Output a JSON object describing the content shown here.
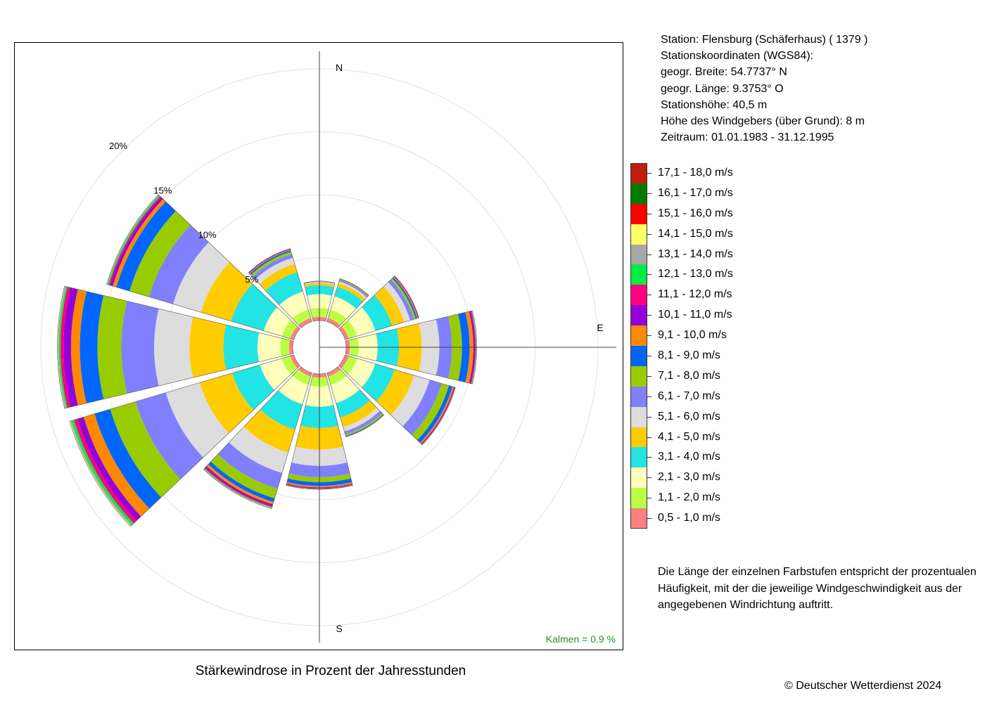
{
  "station": {
    "lines": [
      "Station:  Flensburg (Schäferhaus)  ( 1379 )",
      "Stationskoordinaten (WGS84):",
      "geogr. Breite: 54.7737° N",
      "geogr. Länge:   9.3753° O",
      "Stationshöhe: 40,5 m",
      "Höhe des Windgebers (über Grund): 8 m",
      "Zeitraum: 01.01.1983 - 31.12.1995"
    ]
  },
  "legend": {
    "classes": [
      {
        "label": "17,1 - 18,0 m/s",
        "color": "#c01e0c"
      },
      {
        "label": "16,1 - 17,0 m/s",
        "color": "#007a00"
      },
      {
        "label": "15,1 - 16,0 m/s",
        "color": "#ff0000"
      },
      {
        "label": "14,1 - 15,0 m/s",
        "color": "#ffff66"
      },
      {
        "label": "13,1 - 14,0 m/s",
        "color": "#a8a8a8"
      },
      {
        "label": "12,1 - 13,0 m/s",
        "color": "#00ee44"
      },
      {
        "label": "11,1 - 12,0 m/s",
        "color": "#ff0080"
      },
      {
        "label": "10,1 - 11,0 m/s",
        "color": "#9400d8"
      },
      {
        "label": "9,1 - 10,0 m/s",
        "color": "#ff8800"
      },
      {
        "label": "8,1 - 9,0 m/s",
        "color": "#0066ff"
      },
      {
        "label": "7,1 - 8,0 m/s",
        "color": "#99cc00"
      },
      {
        "label": "6,1 - 7,0 m/s",
        "color": "#8080ff"
      },
      {
        "label": "5,1 - 6,0 m/s",
        "color": "#dddddd"
      },
      {
        "label": "4,1 - 5,0 m/s",
        "color": "#ffcc00"
      },
      {
        "label": "3,1 - 4,0 m/s",
        "color": "#22e4e4"
      },
      {
        "label": "2,1 - 3,0 m/s",
        "color": "#ffffbb"
      },
      {
        "label": "1,1 - 2,0 m/s",
        "color": "#bbff44"
      },
      {
        "label": "0,5 - 1,0 m/s",
        "color": "#ff8080"
      }
    ]
  },
  "note": [
    "Die Länge der einzelnen Farbstufen entspricht der prozentualen",
    "Häufigkeit, mit der die jeweilige Windgeschwindigkeit aus der",
    "angegebenen Windrichtung auftritt."
  ],
  "chart_title": "Stärkewindrose in Prozent der Jahresstunden",
  "copyright": "© Deutscher Wetterdienst  2024",
  "chart_data": {
    "type": "wind_rose",
    "calm_label": "Kalmen  =  0.9 %",
    "calm_percent": 0.9,
    "directions": [
      "N",
      "E",
      "S"
    ],
    "ring_labels": [
      "5%",
      "10%",
      "15%",
      "20%"
    ],
    "rings": [
      5,
      10,
      15,
      20
    ],
    "sector_width_deg": 30,
    "sectors": [
      {
        "direction_deg": 0,
        "values": [
          0.3,
          0.7,
          1.1,
          0.7,
          0.2,
          0.06,
          0.04,
          0.02,
          0.01,
          0.01
        ]
      },
      {
        "direction_deg": 30,
        "values": [
          0.3,
          0.7,
          1.1,
          0.8,
          0.3,
          0.14,
          0.1,
          0.05,
          0.03,
          0.02,
          0.01,
          0.01
        ]
      },
      {
        "direction_deg": 60,
        "values": [
          0.3,
          0.7,
          1.5,
          1.4,
          1.0,
          0.5,
          0.3,
          0.15,
          0.12,
          0.08,
          0.04,
          0.03
        ]
      },
      {
        "direction_deg": 90,
        "values": [
          0.3,
          0.7,
          1.5,
          1.7,
          1.8,
          1.4,
          1.0,
          0.8,
          0.6,
          0.3,
          0.12,
          0.07,
          0.04,
          0.02,
          0.02
        ]
      },
      {
        "direction_deg": 120,
        "values": [
          0.3,
          0.7,
          1.5,
          1.6,
          1.6,
          1.3,
          1.0,
          0.6,
          0.3,
          0.12,
          0.06,
          0.03,
          0.02,
          0.01
        ]
      },
      {
        "direction_deg": 150,
        "values": [
          0.3,
          0.7,
          1.5,
          1.2,
          0.8,
          0.35,
          0.25,
          0.12,
          0.05,
          0.02,
          0.01
        ]
      },
      {
        "direction_deg": 180,
        "values": [
          0.3,
          0.7,
          1.6,
          1.7,
          1.7,
          1.3,
          0.9,
          0.4,
          0.3,
          0.12,
          0.06,
          0.04,
          0.03,
          0.02
        ]
      },
      {
        "direction_deg": 210,
        "values": [
          0.3,
          0.7,
          1.6,
          2.1,
          1.9,
          1.7,
          1.3,
          0.8,
          0.3,
          0.2,
          0.12,
          0.1,
          0.06,
          0.04,
          0.03
        ]
      },
      {
        "direction_deg": 240,
        "values": [
          0.3,
          0.7,
          1.8,
          2.3,
          2.7,
          2.8,
          2.5,
          2.1,
          1.3,
          0.9,
          0.5,
          0.3,
          0.2,
          0.1,
          0.06
        ]
      },
      {
        "direction_deg": 270,
        "values": [
          0.3,
          0.7,
          1.8,
          2.7,
          2.7,
          2.8,
          2.6,
          1.9,
          1.4,
          0.7,
          0.6,
          0.25,
          0.12,
          0.08,
          0.04
        ]
      },
      {
        "direction_deg": 300,
        "values": [
          0.3,
          0.7,
          1.5,
          2.7,
          2.5,
          2.3,
          2.0,
          1.6,
          1.1,
          0.3,
          0.2,
          0.12,
          0.1,
          0.05,
          0.03
        ]
      },
      {
        "direction_deg": 330,
        "values": [
          0.3,
          0.7,
          1.5,
          1.6,
          0.7,
          0.5,
          0.3,
          0.2,
          0.12,
          0.06,
          0.04,
          0.02,
          0.02
        ]
      }
    ]
  }
}
